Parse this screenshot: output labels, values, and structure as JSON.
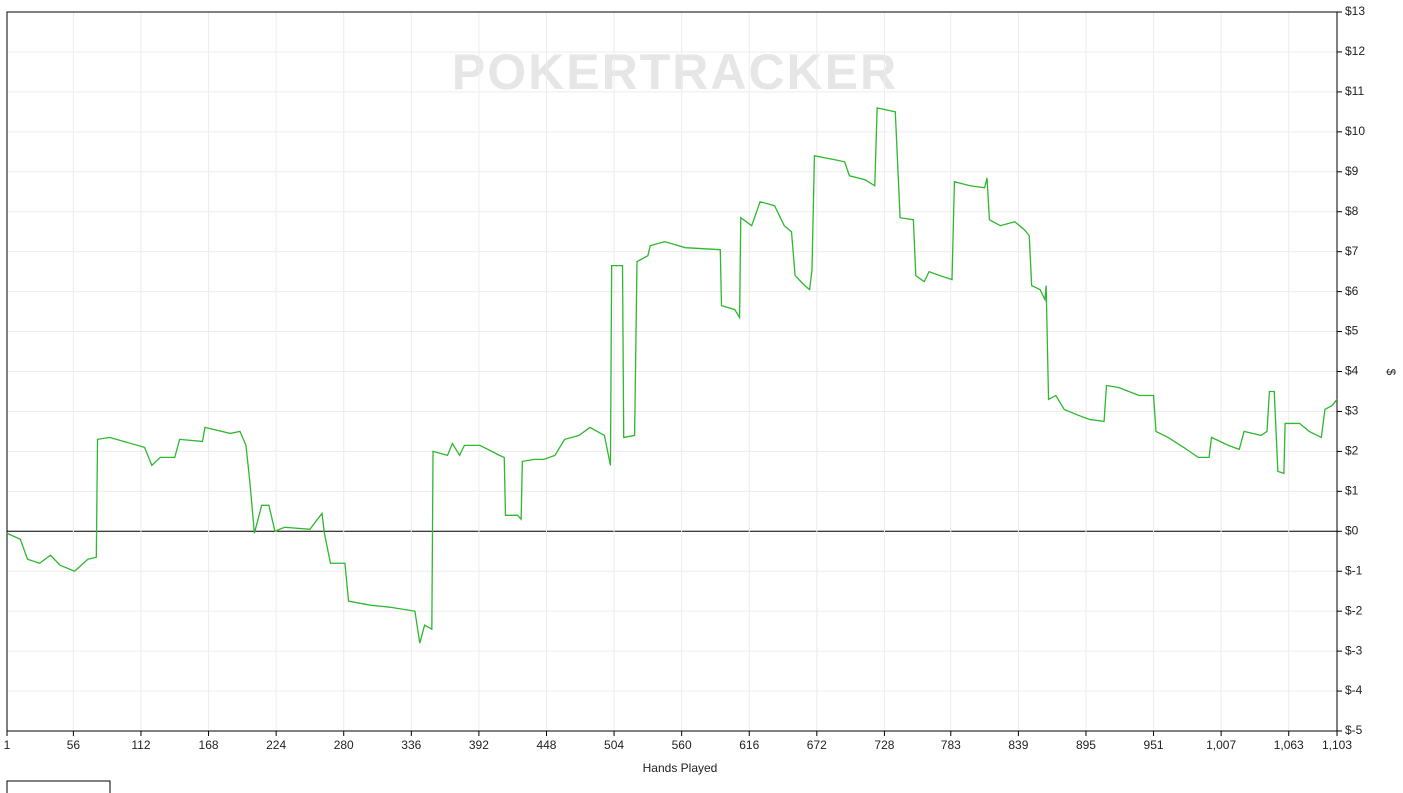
{
  "chart_data": {
    "type": "line",
    "watermark": "POKERTRACKER",
    "xlabel": "Hands Played",
    "ylabel": "$",
    "xlim": [
      1,
      1103
    ],
    "ylim": [
      -5,
      13
    ],
    "xticks": [
      1,
      56,
      112,
      168,
      224,
      280,
      336,
      392,
      448,
      504,
      560,
      616,
      672,
      728,
      783,
      839,
      895,
      951,
      {
        "value": 1007,
        "label": "1,007"
      },
      {
        "value": 1063,
        "label": "1,063"
      },
      {
        "value": 1103,
        "label": "1,103"
      }
    ],
    "yticks": [
      {
        "value": -5,
        "label": "$-5"
      },
      {
        "value": -4,
        "label": "$-4"
      },
      {
        "value": -3,
        "label": "$-3"
      },
      {
        "value": -2,
        "label": "$-2"
      },
      {
        "value": -1,
        "label": "$-1"
      },
      {
        "value": 0,
        "label": "$0"
      },
      {
        "value": 1,
        "label": "$1"
      },
      {
        "value": 2,
        "label": "$2"
      },
      {
        "value": 3,
        "label": "$3"
      },
      {
        "value": 4,
        "label": "$4"
      },
      {
        "value": 5,
        "label": "$5"
      },
      {
        "value": 6,
        "label": "$6"
      },
      {
        "value": 7,
        "label": "$7"
      },
      {
        "value": 8,
        "label": "$8"
      },
      {
        "value": 9,
        "label": "$9"
      },
      {
        "value": 10,
        "label": "$10"
      },
      {
        "value": 11,
        "label": "$11"
      },
      {
        "value": 12,
        "label": "$12"
      },
      {
        "value": 13,
        "label": "$13"
      }
    ],
    "grid": true,
    "x": [
      1,
      12,
      18,
      28,
      37,
      45,
      57,
      68,
      75,
      76,
      86,
      115,
      121,
      128,
      140,
      144,
      163,
      165,
      186,
      194,
      199,
      202,
      206,
      212,
      218,
      223,
      231,
      252,
      262,
      264,
      269,
      281,
      284,
      302,
      318,
      339,
      343,
      347,
      353,
      354,
      366,
      370,
      376,
      380,
      393,
      409,
      413,
      414,
      424,
      427,
      428,
      438,
      446,
      455,
      463,
      475,
      484,
      496,
      501,
      502,
      511,
      512,
      521,
      523,
      532,
      534,
      546,
      563,
      592,
      593,
      604,
      608,
      609,
      618,
      625,
      637,
      645,
      651,
      654,
      662,
      666,
      668,
      670,
      687,
      695,
      699,
      712,
      720,
      722,
      737,
      741,
      752,
      754,
      761,
      765,
      774,
      784,
      786,
      799,
      811,
      813,
      815,
      824,
      836,
      844,
      848,
      850,
      857,
      861,
      862,
      864,
      870,
      877,
      889,
      898,
      910,
      912,
      922,
      939,
      951,
      953,
      963,
      976,
      988,
      997,
      999,
      1013,
      1022,
      1026,
      1040,
      1045,
      1047,
      1051,
      1054,
      1059,
      1060,
      1072,
      1080,
      1090,
      1093,
      1099,
      1103
    ],
    "series": [
      {
        "color": "#2eb82e",
        "values": [
          -0.05,
          -0.2,
          -0.7,
          -0.8,
          -0.6,
          -0.85,
          -1.0,
          -0.7,
          -0.65,
          2.3,
          2.35,
          2.1,
          1.65,
          1.85,
          1.85,
          2.3,
          2.25,
          2.6,
          2.45,
          2.5,
          2.15,
          1.3,
          -0.05,
          0.65,
          0.65,
          0,
          0.1,
          0.05,
          0.45,
          -0.05,
          -0.8,
          -0.8,
          -1.75,
          -1.85,
          -1.9,
          -2.0,
          -2.8,
          -2.35,
          -2.45,
          2.0,
          1.9,
          2.2,
          1.9,
          2.15,
          2.15,
          1.9,
          1.85,
          0.4,
          0.4,
          0.3,
          1.75,
          1.8,
          1.8,
          1.9,
          2.3,
          2.4,
          2.6,
          2.4,
          1.65,
          6.65,
          6.65,
          2.35,
          2.4,
          6.75,
          6.9,
          7.15,
          7.25,
          7.1,
          7.05,
          5.65,
          5.55,
          5.35,
          7.85,
          7.65,
          8.25,
          8.15,
          7.65,
          7.5,
          6.4,
          6.15,
          6.05,
          6.55,
          9.4,
          9.3,
          9.25,
          8.9,
          8.8,
          8.65,
          10.6,
          10.5,
          7.85,
          7.8,
          6.4,
          6.25,
          6.5,
          6.4,
          6.3,
          8.75,
          8.65,
          8.6,
          8.85,
          7.8,
          7.65,
          7.75,
          7.55,
          7.4,
          6.15,
          6.05,
          5.8,
          6.15,
          3.3,
          3.4,
          3.05,
          2.9,
          2.8,
          2.75,
          3.65,
          3.6,
          3.4,
          3.4,
          2.5,
          2.35,
          2.1,
          1.85,
          1.85,
          2.35,
          2.15,
          2.05,
          2.5,
          2.4,
          2.5,
          3.5,
          3.5,
          1.5,
          1.45,
          2.7,
          2.7,
          2.5,
          2.35,
          3.05,
          3.15,
          3.3
        ]
      }
    ]
  }
}
